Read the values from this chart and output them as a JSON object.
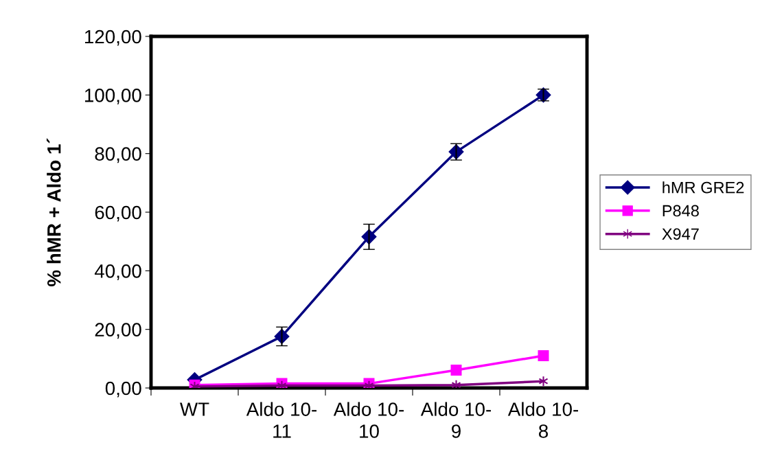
{
  "chart_data": {
    "type": "line",
    "ylabel": "% hMR + Aldo 1´",
    "categories": [
      "WT",
      "Aldo 10-\n11",
      "Aldo 10-\n10",
      "Aldo 10-\n9",
      "Aldo 10-\n8"
    ],
    "series": [
      {
        "name": "hMR GRE2",
        "color": "#000080",
        "marker": "diamond",
        "values": [
          2.8,
          17.6,
          51.6,
          80.6,
          100
        ],
        "errors": [
          null,
          3.2,
          4.3,
          2.8,
          2.0
        ]
      },
      {
        "name": "P848",
        "color": "#ff00ff",
        "marker": "square",
        "values": [
          1.0,
          1.5,
          1.5,
          6.1,
          11.0
        ]
      },
      {
        "name": "X947",
        "color": "#800080",
        "marker": "cross",
        "values": [
          0.5,
          0.8,
          0.8,
          1.0,
          2.3
        ]
      }
    ],
    "ylim": [
      0,
      120
    ],
    "yticks": [
      {
        "value": 0,
        "label": "0,00"
      },
      {
        "value": 20,
        "label": "20,00"
      },
      {
        "value": 40,
        "label": "40,00"
      },
      {
        "value": 60,
        "label": "60,00"
      },
      {
        "value": 80,
        "label": "80,00"
      },
      {
        "value": 100,
        "label": "100,00"
      },
      {
        "value": 120,
        "label": "120,00"
      }
    ],
    "grid": false,
    "legend": "right",
    "line_style": "solid"
  }
}
